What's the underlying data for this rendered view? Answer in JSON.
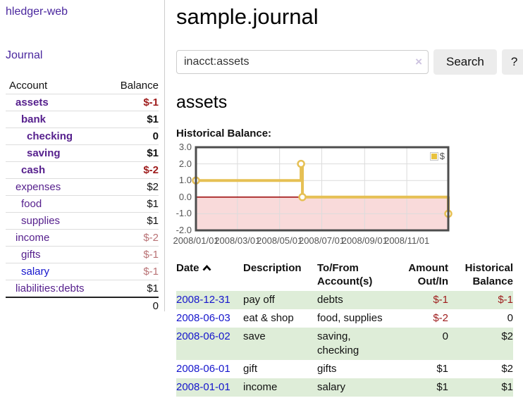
{
  "app": {
    "brand": "hledger-web",
    "nav": {
      "journal": "Journal"
    }
  },
  "sidebar": {
    "headers": {
      "account": "Account",
      "balance": "Balance"
    },
    "rows": [
      {
        "account": "assets",
        "balance": "$-1"
      },
      {
        "account": "bank",
        "balance": "$1"
      },
      {
        "account": "checking",
        "balance": "0"
      },
      {
        "account": "saving",
        "balance": "$1"
      },
      {
        "account": "cash",
        "balance": "$-2"
      },
      {
        "account": "expenses",
        "balance": "$2"
      },
      {
        "account": "food",
        "balance": "$1"
      },
      {
        "account": "supplies",
        "balance": "$1"
      },
      {
        "account": "income",
        "balance": "$-2"
      },
      {
        "account": "gifts",
        "balance": "$-1"
      },
      {
        "account": "salary",
        "balance": "$-1"
      },
      {
        "account": "liabilities:debts",
        "balance": "$1"
      }
    ],
    "total": "0"
  },
  "main": {
    "title": "sample.journal",
    "search": {
      "query": "inacct:assets",
      "clear_icon": "×",
      "search_button": "Search",
      "help_button": "?"
    },
    "account_heading": "assets",
    "chart_title": "Historical Balance:"
  },
  "chart_data": {
    "type": "line",
    "style": "step-after",
    "title": "Historical Balance",
    "series": [
      {
        "name": "$",
        "points": [
          {
            "date": "2008-01-01",
            "day": 0,
            "value": 1
          },
          {
            "date": "2008-06-01",
            "day": 152,
            "value": 2
          },
          {
            "date": "2008-06-03",
            "day": 154,
            "value": 0
          },
          {
            "date": "2008-12-31",
            "day": 365,
            "value": -1
          }
        ]
      }
    ],
    "ylim": [
      -2,
      3
    ],
    "y_ticks": [
      3,
      2,
      1,
      0,
      -1,
      -2
    ],
    "x_max_day": 365,
    "x_ticks": [
      {
        "day": 0,
        "label": "2008/01/01"
      },
      {
        "day": 60,
        "label": "2008/03/01"
      },
      {
        "day": 121,
        "label": "2008/05/01"
      },
      {
        "day": 182,
        "label": "2008/07/01"
      },
      {
        "day": 244,
        "label": "2008/09/01"
      },
      {
        "day": 305,
        "label": "2008/11/01"
      }
    ],
    "legend_position": "top-right",
    "grid": true,
    "colors": {
      "line": "#e6c054",
      "negative_region": "#f9dada",
      "zero_line": "#990000"
    }
  },
  "register": {
    "headers": {
      "date": "Date",
      "description": "Description",
      "accounts": "To/From Account(s)",
      "amount": "Amount Out/In",
      "balance": "Historical Balance"
    },
    "rows": [
      {
        "date": "2008-12-31",
        "description": "pay off",
        "accounts": "debts",
        "amount": "$-1",
        "balance": "$-1"
      },
      {
        "date": "2008-06-03",
        "description": "eat & shop",
        "accounts": "food, supplies",
        "amount": "$-2",
        "balance": "0"
      },
      {
        "date": "2008-06-02",
        "description": "save",
        "accounts": "saving, checking",
        "amount": "0",
        "balance": "$2"
      },
      {
        "date": "2008-06-01",
        "description": "gift",
        "accounts": "gifts",
        "amount": "$1",
        "balance": "$2"
      },
      {
        "date": "2008-01-01",
        "description": "income",
        "accounts": "salary",
        "amount": "$1",
        "balance": "$1"
      }
    ]
  }
}
